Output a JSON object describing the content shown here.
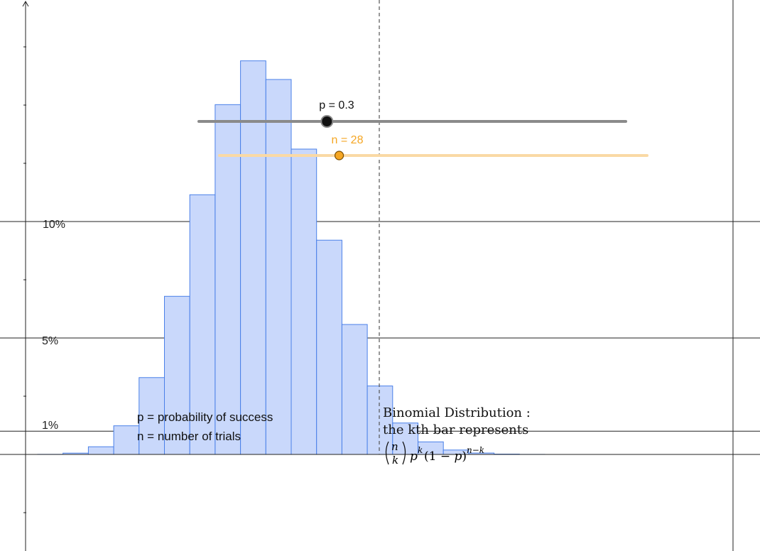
{
  "chart_data": {
    "type": "bar",
    "title": "",
    "xlabel": "",
    "ylabel": "",
    "x": [
      0,
      1,
      2,
      3,
      4,
      5,
      6,
      7,
      8,
      9,
      10,
      11,
      12,
      13,
      14,
      15,
      16,
      17,
      18,
      19,
      20,
      21,
      22,
      23,
      24,
      25,
      26,
      27,
      28
    ],
    "values": [
      4.7e-05,
      0.00056,
      0.0033,
      0.0123,
      0.033,
      0.0679,
      0.1115,
      0.1502,
      0.169,
      0.161,
      0.1311,
      0.092,
      0.0558,
      0.0294,
      0.0135,
      0.0054,
      0.0019,
      0.0006,
      0.00015,
      3e-05,
      6.5e-06,
      1.1e-06,
      0.0,
      0.0,
      0.0,
      0.0,
      0.0,
      0.0,
      0.0
    ],
    "ylim": [
      -0.025,
      0.19
    ],
    "reference_lines": [
      {
        "y": 0.1,
        "label": "10%"
      },
      {
        "y": 0.05,
        "label": "5%"
      },
      {
        "y": 0.01,
        "label": "1%"
      }
    ],
    "mean_line_x": 8.4,
    "bar_color": "#c9d8fb",
    "bar_border": "#4a80e8"
  },
  "sliders": {
    "p": {
      "label": "p = 0.3",
      "value": 0.3,
      "min": 0,
      "max": 1,
      "color": "#555555"
    },
    "n": {
      "label": "n = 28",
      "value": 28,
      "min": 0,
      "max": 100,
      "color": "#f5a623"
    }
  },
  "notes": {
    "line1": "p = probability of success",
    "line2": "n = number of trials"
  },
  "formula": {
    "title": "Binomial Distribution :",
    "subtitle": "the kth bar represents"
  }
}
